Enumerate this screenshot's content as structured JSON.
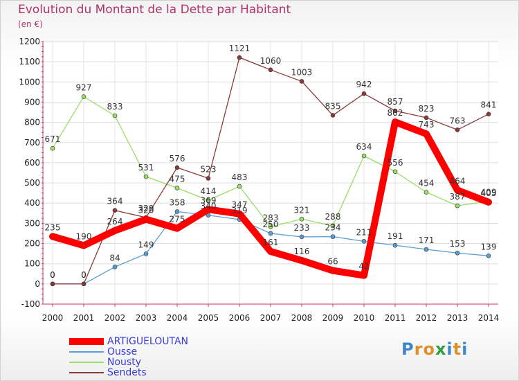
{
  "header": {
    "title": "Evolution du Montant de la Dette par Habitant",
    "subtitle": "(en €)"
  },
  "logo": {
    "chars": [
      "P",
      "r",
      "o",
      "x",
      "i",
      "t",
      "i"
    ],
    "colors": [
      "#3d86c8",
      "#e0902a",
      "#e0902a",
      "#2e9e3f",
      "#3d86c8",
      "#e0902a",
      "#3d86c8"
    ]
  },
  "chart_data": {
    "type": "line",
    "title": "Evolution du Montant de la Dette par Habitant",
    "subtitle": "(en €)",
    "x": [
      "2000",
      "2001",
      "2002",
      "2003",
      "2004",
      "2005",
      "2006",
      "2007",
      "2008",
      "2009",
      "2010",
      "2011",
      "2012",
      "2013",
      "2014"
    ],
    "ylim": [
      -100,
      1200
    ],
    "yticks": [
      -100,
      0,
      100,
      200,
      300,
      400,
      500,
      600,
      700,
      800,
      900,
      1000,
      1100,
      1200
    ],
    "grid": true,
    "legend_position": "bottom-left",
    "series": [
      {
        "name": "ARTIGUELOUTAN",
        "color": "#ff0000",
        "values": [
          235,
          190,
          264,
          320,
          275,
          369,
          347,
          161,
          116,
          66,
          42,
          802,
          743,
          464,
          405
        ],
        "labels": [
          "235",
          "190",
          "264",
          "320",
          "275",
          "369",
          "347",
          "161",
          "116",
          "66",
          "42",
          "802",
          "743",
          "464",
          "405"
        ]
      },
      {
        "name": "Ousse",
        "color": "#5a9fd4",
        "values": [
          0,
          0,
          84,
          149,
          358,
          340,
          319,
          250,
          233,
          234,
          211,
          191,
          171,
          153,
          139
        ],
        "labels": [
          "0",
          "0",
          "84",
          "149",
          "358",
          "340",
          "319",
          "250",
          "233",
          "234",
          "211",
          "191",
          "171",
          "153",
          "139"
        ]
      },
      {
        "name": "Nousty",
        "color": "#99dd66",
        "values": [
          671,
          927,
          833,
          531,
          475,
          414,
          483,
          283,
          321,
          288,
          634,
          556,
          454,
          387,
          409
        ],
        "labels": [
          "671",
          "927",
          "833",
          "531",
          "475",
          "414",
          "483",
          "283",
          "321",
          "288",
          "634",
          "556",
          "454",
          "387",
          "409"
        ]
      },
      {
        "name": "Sendets",
        "color": "#8b3a3a",
        "values": [
          0,
          0,
          364,
          329,
          576,
          523,
          1121,
          1060,
          1003,
          835,
          942,
          857,
          823,
          763,
          841
        ],
        "labels": [
          "0",
          "0",
          "364",
          "329",
          "576",
          "523",
          "1121",
          "1060",
          "1003",
          "835",
          "942",
          "857",
          "823",
          "763",
          "841"
        ]
      }
    ]
  }
}
